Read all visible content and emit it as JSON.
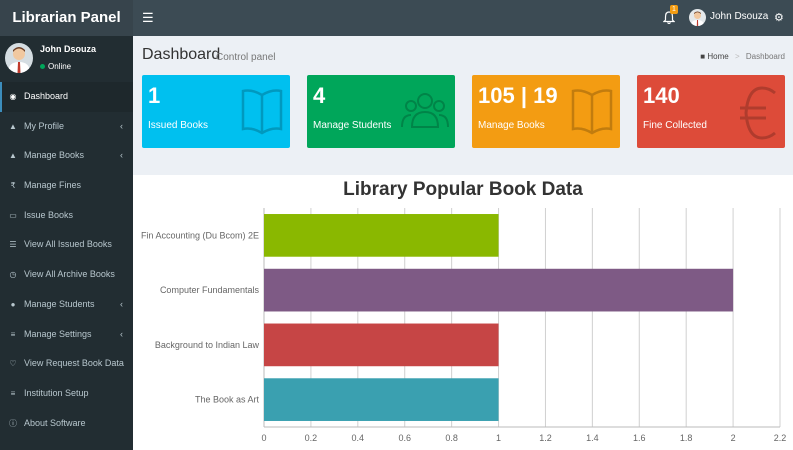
{
  "app": {
    "title": "Librarian Panel"
  },
  "header": {
    "toggle_icon": "hamburger-icon",
    "notification_count": "1",
    "user_name": "John Dsouza"
  },
  "sidebar": {
    "user": {
      "name": "John Dsouza",
      "status": "Online"
    },
    "items": [
      {
        "label": "Dashboard",
        "icon": "dashboard-icon",
        "active": true,
        "has_submenu": false
      },
      {
        "label": "My Profile",
        "icon": "bank-icon",
        "has_submenu": true
      },
      {
        "label": "Manage Books",
        "icon": "bank-icon",
        "has_submenu": true
      },
      {
        "label": "Manage Fines",
        "icon": "rupee-icon",
        "has_submenu": false
      },
      {
        "label": "Issue Books",
        "icon": "folder-icon",
        "has_submenu": false
      },
      {
        "label": "View All Issued Books",
        "icon": "list-icon",
        "has_submenu": false
      },
      {
        "label": "View All Archive Books",
        "icon": "clock-icon",
        "has_submenu": false
      },
      {
        "label": "Manage Students",
        "icon": "users-icon",
        "has_submenu": true
      },
      {
        "label": "Manage Settings",
        "icon": "sliders-icon",
        "has_submenu": true
      },
      {
        "label": "View Request Book Data",
        "icon": "heart-icon",
        "has_submenu": false
      },
      {
        "label": "Institution Setup",
        "icon": "sliders-icon",
        "has_submenu": false
      },
      {
        "label": "About Software",
        "icon": "info-icon",
        "has_submenu": false
      }
    ]
  },
  "content_header": {
    "title": "Dashboard",
    "subtitle": "Control panel",
    "breadcrumb": {
      "home": "Home",
      "current": "Dashboard"
    }
  },
  "info_boxes": [
    {
      "value": "1",
      "label": "Issued Books",
      "color": "#00c0ef",
      "icon": "book-icon"
    },
    {
      "value": "4",
      "label": "Manage Students",
      "color": "#00a65a",
      "icon": "users-icon"
    },
    {
      "value": "105 | 19",
      "label": "Manage Books",
      "color": "#f39c12",
      "icon": "book-icon"
    },
    {
      "value": "140",
      "label": "Fine Collected",
      "color": "#dd4b39",
      "icon": "euro-icon"
    }
  ],
  "chart_data": {
    "type": "bar",
    "orientation": "horizontal",
    "title": "Library Popular Book Data",
    "categories": [
      "Fin Accounting (Du Bcom) 2E",
      "Computer Fundamentals",
      "Background to Indian Law",
      "The Book as Art"
    ],
    "values": [
      1,
      2,
      1,
      1
    ],
    "colors": [
      "#8ab800",
      "#7e5a85",
      "#c64545",
      "#3aa0b0"
    ],
    "xlim": [
      0,
      2.2
    ],
    "xticks": [
      "0",
      "0.2",
      "0.4",
      "0.6",
      "0.8",
      "1",
      "1.2",
      "1.4",
      "1.6",
      "1.8",
      "2",
      "2.2"
    ],
    "grid": true,
    "legend": false
  }
}
